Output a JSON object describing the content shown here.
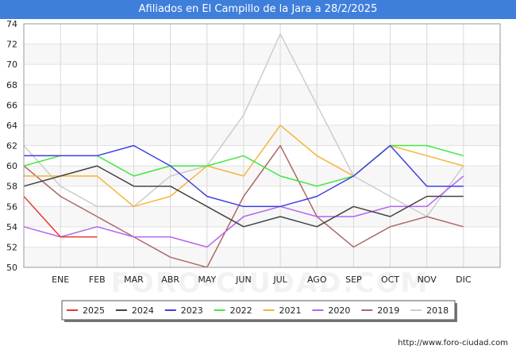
{
  "chart_data": {
    "type": "line",
    "title": "Afiliados en El Campillo de la Jara a 28/2/2025",
    "categories": [
      "",
      "ENE",
      "FEB",
      "MAR",
      "ABR",
      "MAY",
      "JUN",
      "JUL",
      "AGO",
      "SEP",
      "OCT",
      "NOV",
      "DIC"
    ],
    "ylim": [
      50,
      74
    ],
    "yticks": [
      50,
      52,
      54,
      56,
      58,
      60,
      62,
      64,
      66,
      68,
      70,
      72,
      74
    ],
    "grid": true,
    "legend_position": "bottom",
    "series": [
      {
        "name": "2025",
        "color": "#e8392f",
        "values": [
          57,
          53,
          53,
          null,
          null,
          null,
          null,
          null,
          null,
          null,
          null,
          null,
          null
        ]
      },
      {
        "name": "2024",
        "color": "#444444",
        "values": [
          58,
          59,
          60,
          58,
          58,
          56,
          54,
          55,
          54,
          56,
          55,
          57,
          57
        ]
      },
      {
        "name": "2023",
        "color": "#4040e0",
        "values": [
          61,
          61,
          61,
          62,
          60,
          57,
          56,
          56,
          57,
          59,
          62,
          58,
          58
        ]
      },
      {
        "name": "2022",
        "color": "#40e840",
        "values": [
          60,
          61,
          61,
          59,
          60,
          60,
          61,
          59,
          58,
          59,
          62,
          62,
          61
        ]
      },
      {
        "name": "2021",
        "color": "#f5b53b",
        "values": [
          59,
          59,
          59,
          56,
          57,
          60,
          59,
          64,
          61,
          59,
          62,
          61,
          60
        ]
      },
      {
        "name": "2020",
        "color": "#b266f0",
        "values": [
          54,
          53,
          54,
          53,
          53,
          52,
          55,
          56,
          55,
          55,
          56,
          56,
          59
        ]
      },
      {
        "name": "2019",
        "color": "#b06868",
        "values": [
          60,
          57,
          55,
          53,
          51,
          50,
          57,
          62,
          55,
          52,
          54,
          55,
          54
        ]
      },
      {
        "name": "2018",
        "color": "#cccccc",
        "values": [
          62,
          58,
          56,
          56,
          59,
          60,
          65,
          73,
          66,
          59,
          57,
          55,
          60
        ]
      }
    ]
  },
  "watermark": "FORO-CIUDAD.COM",
  "source": "http://www.foro-ciudad.com"
}
